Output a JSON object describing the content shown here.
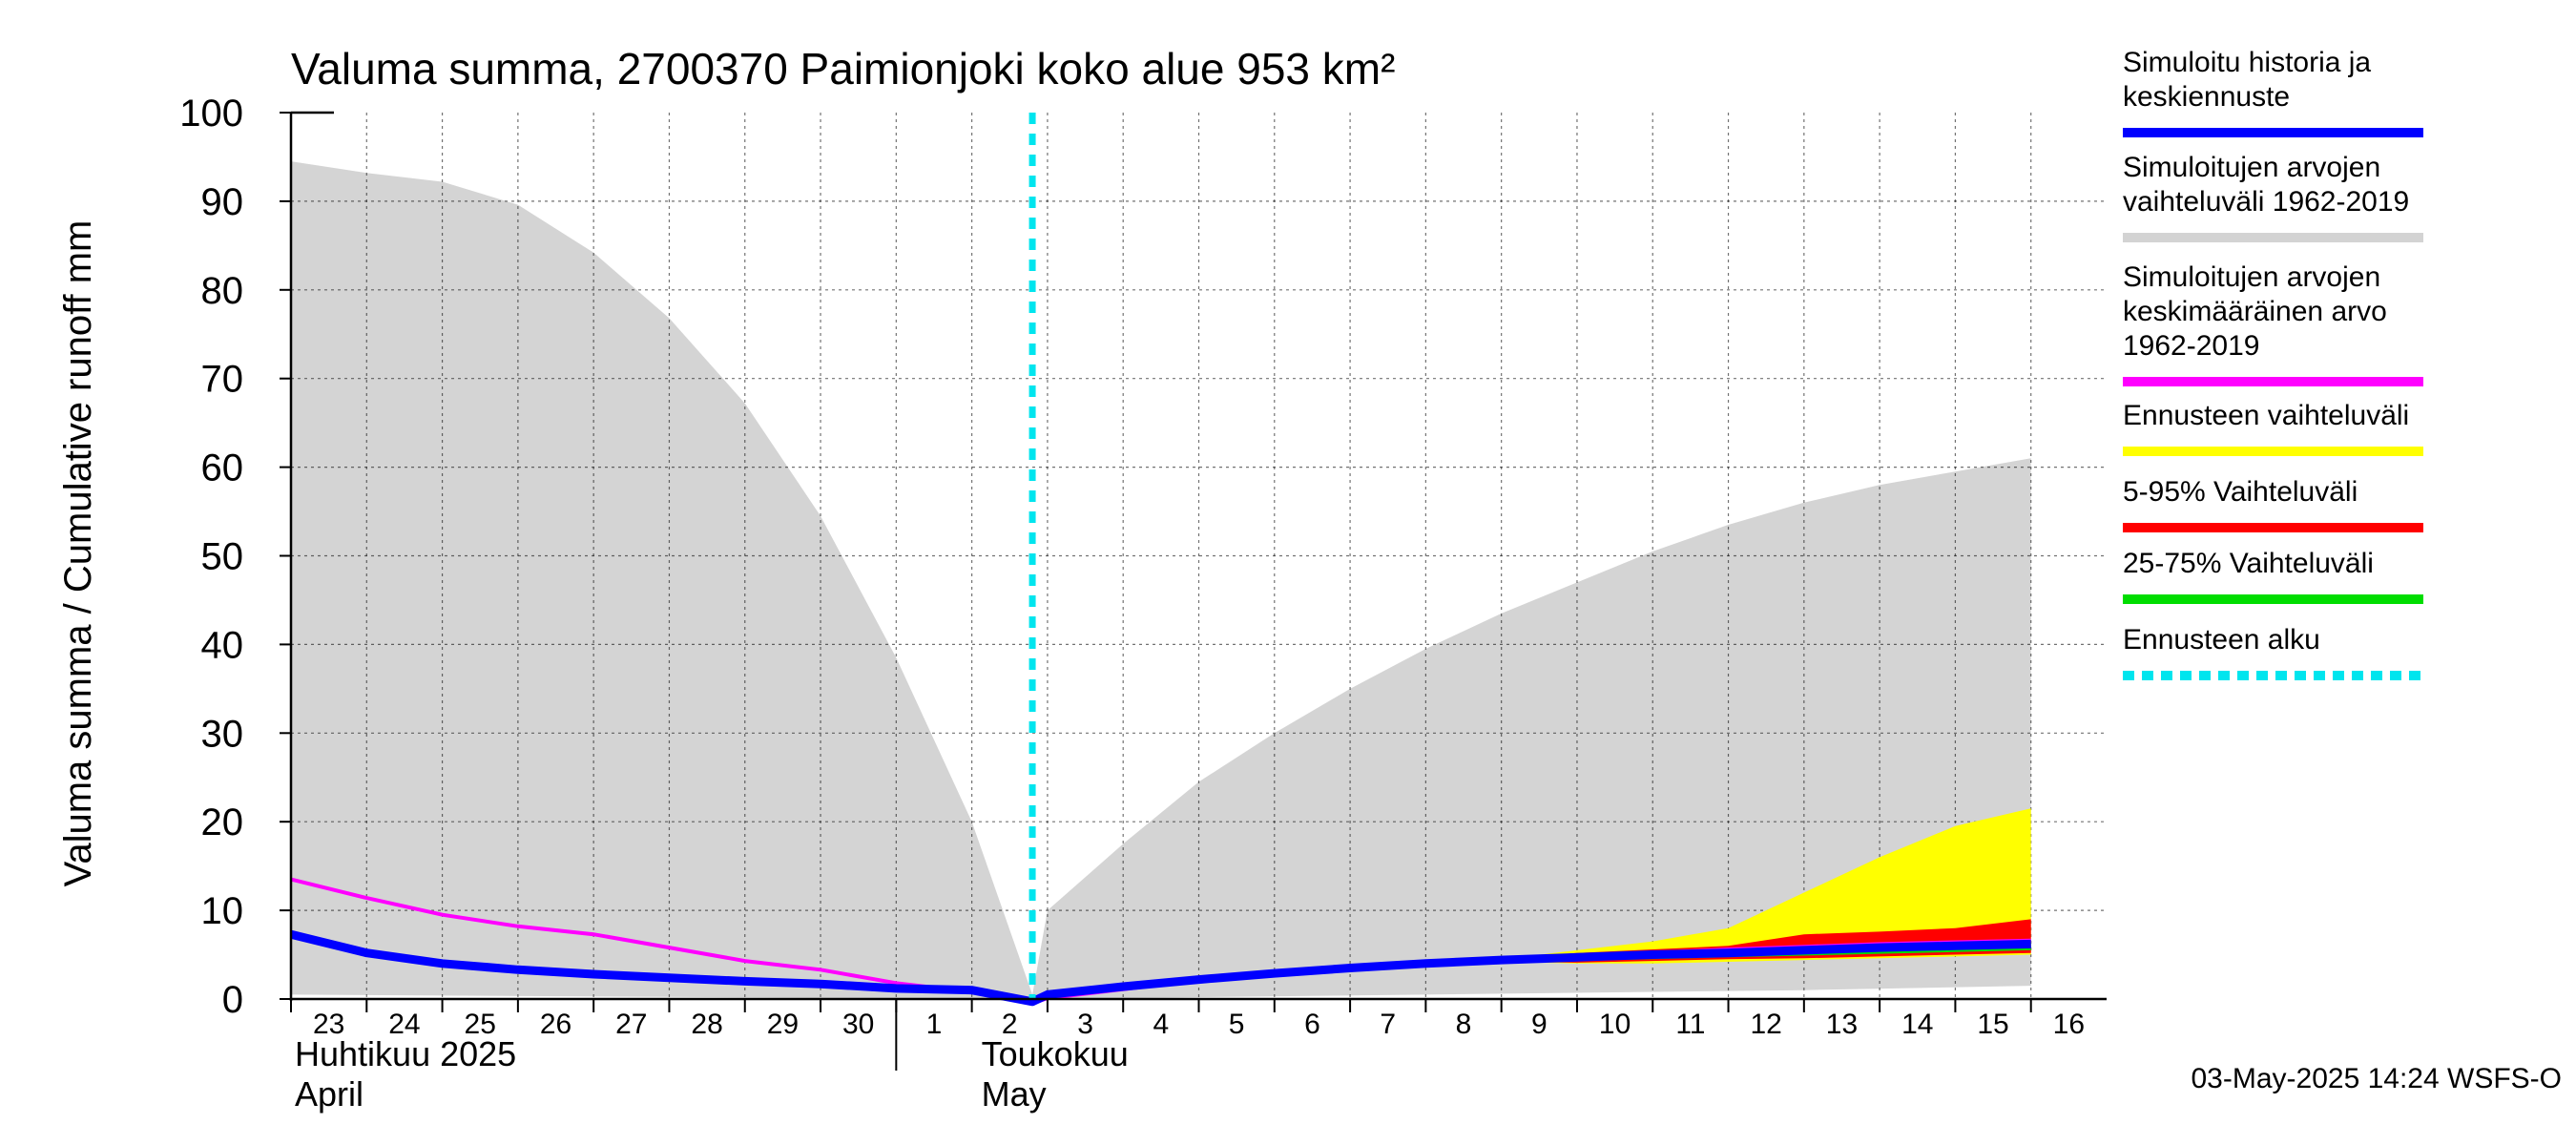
{
  "chart_data": {
    "type": "area",
    "title": "Valuma summa, 2700370 Paimionjoki koko alue 953 km²",
    "ylabel": "Valuma summa / Cumulative runoff    mm",
    "ylim": [
      0,
      100
    ],
    "yticks": [
      "0",
      "10",
      "20",
      "30",
      "40",
      "50",
      "60",
      "70",
      "80",
      "90",
      "100"
    ],
    "x_days": [
      "23",
      "24",
      "25",
      "26",
      "27",
      "28",
      "29",
      "30",
      "1",
      "2",
      "3",
      "4",
      "5",
      "6",
      "7",
      "8",
      "9",
      "10",
      "11",
      "12",
      "13",
      "14",
      "15",
      "16"
    ],
    "months": [
      {
        "fi": "Huhtikuu  2025",
        "en": "April"
      },
      {
        "fi": "Toukokuu",
        "en": "May"
      }
    ],
    "forecast_start_day_index": 9.8,
    "series": {
      "hist_range_upper": [
        [
          0,
          94.5
        ],
        [
          1,
          93.2
        ],
        [
          2,
          92.2
        ],
        [
          3,
          89.6
        ],
        [
          4,
          84.2
        ],
        [
          5,
          76.8
        ],
        [
          6,
          67.2
        ],
        [
          7,
          54.5
        ],
        [
          8,
          38.5
        ],
        [
          9,
          20.0
        ],
        [
          9.8,
          0.5
        ],
        [
          10,
          10.0
        ],
        [
          11,
          17.5
        ],
        [
          12,
          24.5
        ],
        [
          13,
          30.0
        ],
        [
          14,
          35.0
        ],
        [
          15,
          39.5
        ],
        [
          16,
          43.5
        ],
        [
          17,
          47.0
        ],
        [
          18,
          50.5
        ],
        [
          19,
          53.5
        ],
        [
          20,
          56.0
        ],
        [
          21,
          58.0
        ],
        [
          22,
          59.5
        ],
        [
          23,
          61.0
        ]
      ],
      "hist_range_lower": [
        [
          0,
          0.5
        ],
        [
          9.8,
          0.0
        ],
        [
          15,
          0.5
        ],
        [
          20,
          1.0
        ],
        [
          23,
          1.5
        ]
      ],
      "mean": [
        [
          0,
          13.5
        ],
        [
          1,
          11.4
        ],
        [
          2,
          9.5
        ],
        [
          3,
          8.2
        ],
        [
          4,
          7.3
        ],
        [
          5,
          5.8
        ],
        [
          6,
          4.3
        ],
        [
          7,
          3.3
        ],
        [
          8,
          1.8
        ],
        [
          9,
          0.8
        ],
        [
          9.8,
          -0.5
        ],
        [
          10,
          0.1
        ],
        [
          11,
          1.1
        ],
        [
          12,
          2.1
        ],
        [
          13,
          2.9
        ],
        [
          14,
          3.5
        ],
        [
          15,
          3.9
        ],
        [
          16,
          4.3
        ],
        [
          17,
          4.8
        ],
        [
          18,
          5.2
        ],
        [
          19,
          5.6
        ],
        [
          20,
          5.9
        ],
        [
          21,
          6.2
        ],
        [
          22,
          6.4
        ],
        [
          23,
          6.6
        ]
      ],
      "simulated": [
        [
          0,
          7.3
        ],
        [
          1,
          5.2
        ],
        [
          2,
          4.0
        ],
        [
          3,
          3.3
        ],
        [
          4,
          2.8
        ],
        [
          5,
          2.4
        ],
        [
          6,
          2.0
        ],
        [
          7,
          1.7
        ],
        [
          8,
          1.2
        ],
        [
          9,
          1.0
        ],
        [
          9.8,
          -0.3
        ],
        [
          10,
          0.5
        ],
        [
          11,
          1.4
        ],
        [
          12,
          2.2
        ],
        [
          13,
          2.9
        ],
        [
          14,
          3.5
        ],
        [
          15,
          4.0
        ],
        [
          16,
          4.4
        ],
        [
          17,
          4.7
        ],
        [
          18,
          5.0
        ],
        [
          19,
          5.2
        ],
        [
          20,
          5.5
        ],
        [
          21,
          5.8
        ],
        [
          22,
          6.0
        ],
        [
          23,
          6.2
        ]
      ],
      "forecast_range_upper": [
        [
          16,
          4.5
        ],
        [
          17,
          5.5
        ],
        [
          18,
          6.5
        ],
        [
          19,
          8.0
        ],
        [
          20,
          12.0
        ],
        [
          21,
          16.0
        ],
        [
          22,
          19.5
        ],
        [
          23,
          21.5
        ]
      ],
      "forecast_range_lower": [
        [
          16,
          4.2
        ],
        [
          17,
          4.0
        ],
        [
          18,
          4.0
        ],
        [
          19,
          4.2
        ],
        [
          20,
          4.4
        ],
        [
          21,
          4.6
        ],
        [
          22,
          4.8
        ],
        [
          23,
          5.0
        ]
      ],
      "p5_95_upper": [
        [
          16,
          4.5
        ],
        [
          17,
          5.2
        ],
        [
          18,
          5.6
        ],
        [
          19,
          6.0
        ],
        [
          20,
          7.3
        ],
        [
          21,
          7.6
        ],
        [
          22,
          8.0
        ],
        [
          23,
          9.0
        ]
      ],
      "p5_95_lower": [
        [
          16,
          4.2
        ],
        [
          17,
          4.1
        ],
        [
          18,
          4.3
        ],
        [
          19,
          4.5
        ],
        [
          20,
          4.6
        ],
        [
          21,
          4.8
        ],
        [
          22,
          5.0
        ],
        [
          23,
          5.2
        ]
      ],
      "p25_75_upper": [
        [
          16,
          4.4
        ],
        [
          17,
          4.8
        ],
        [
          18,
          5.1
        ],
        [
          19,
          5.4
        ],
        [
          20,
          5.7
        ],
        [
          21,
          5.9
        ],
        [
          22,
          6.1
        ],
        [
          23,
          6.4
        ]
      ],
      "p25_75_lower": [
        [
          16,
          4.2
        ],
        [
          17,
          4.3
        ],
        [
          18,
          4.5
        ],
        [
          19,
          4.7
        ],
        [
          20,
          4.9
        ],
        [
          21,
          5.1
        ],
        [
          22,
          5.3
        ],
        [
          23,
          5.5
        ]
      ]
    },
    "legend": [
      {
        "label": "Simuloitu historia ja\nkeskiennuste",
        "color": "#0000ff",
        "style": "solid"
      },
      {
        "label": "Simuloitujen arvojen\nvaihteluväli 1962-2019",
        "color": "#d3d3d3",
        "style": "solid"
      },
      {
        "label": "Simuloitujen arvojen\nkeskimääräinen arvo\n   1962-2019",
        "color": "#ff00ff",
        "style": "solid"
      },
      {
        "label": "Ennusteen vaihteluväli",
        "color": "#ffff00",
        "style": "solid"
      },
      {
        "label": "5-95% Vaihteluväli",
        "color": "#ff0000",
        "style": "solid"
      },
      {
        "label": "25-75% Vaihteluväli",
        "color": "#00dd00",
        "style": "solid"
      },
      {
        "label": "Ennusteen alku",
        "color": "#00e5ee",
        "style": "dashed"
      }
    ]
  },
  "footer": "03-May-2025 14:24 WSFS-O"
}
